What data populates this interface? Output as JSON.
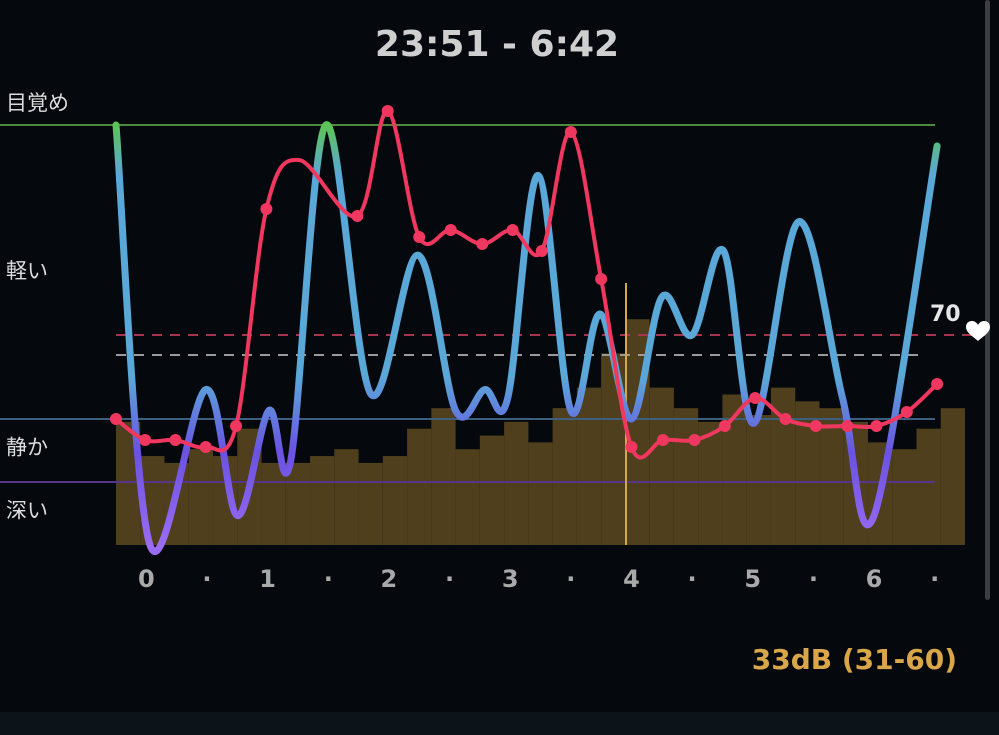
{
  "title": "23:51 - 6:42",
  "chart_data": {
    "type": "line",
    "xlim": [
      -0.25,
      6.75
    ],
    "xticks": [
      0,
      {
        "value": 0.5,
        "label": "·"
      },
      1,
      {
        "value": 1.5,
        "label": "·"
      },
      2,
      {
        "value": 2.5,
        "label": "·"
      },
      3,
      {
        "value": 3.5,
        "label": "·"
      },
      4,
      {
        "value": 4.5,
        "label": "·"
      },
      5,
      {
        "value": 5.5,
        "label": "·"
      },
      6,
      {
        "value": 6.5,
        "label": "·"
      }
    ],
    "ylim": [
      0,
      100
    ],
    "yticks": [
      {
        "value": 105,
        "label": "目覚め"
      },
      {
        "value": 65,
        "label": "軽い"
      },
      {
        "value": 23,
        "label": "静か"
      },
      {
        "value": 8,
        "label": "深い"
      }
    ],
    "stage_lines": [
      {
        "value": 100,
        "color": "#4c8a3e"
      },
      {
        "value": 30,
        "color": "#3c5f80"
      },
      {
        "value": 15,
        "color": "#56358a"
      }
    ],
    "y2lim": [
      40,
      100
    ],
    "y2ticks": [
      70
    ],
    "y2_line_color": "#a8334f",
    "sleep": {
      "x": [
        -0.25,
        0.03,
        0.49,
        0.75,
        1.01,
        1.19,
        1.48,
        1.85,
        2.24,
        2.55,
        2.79,
        2.98,
        3.23,
        3.5,
        3.74,
        4.0,
        4.25,
        4.5,
        4.76,
        5.01,
        5.38,
        5.74,
        6.0,
        6.52
      ],
      "values": [
        100,
        0,
        37,
        7,
        32,
        20,
        100,
        36,
        69,
        32,
        37,
        35,
        88,
        32,
        55,
        30,
        59,
        50,
        70,
        29,
        77,
        35,
        7,
        95
      ],
      "colors": [
        "#5cc456",
        "#5aa8d8",
        "#5aa8d8",
        "#6a52e2",
        "#9a6cf2"
      ]
    },
    "heart_rate": {
      "axis": "y2",
      "color": "#f0375f",
      "x": [
        -0.25,
        -0.01,
        0.24,
        0.49,
        0.74,
        0.99,
        1.26,
        1.74,
        1.99,
        2.25,
        2.51,
        2.77,
        3.02,
        3.26,
        3.5,
        3.75,
        4.0,
        4.26,
        4.52,
        4.77,
        5.02,
        5.27,
        5.52,
        5.78,
        6.02,
        6.27,
        6.52
      ],
      "values": [
        58,
        55,
        55,
        54,
        57,
        88,
        95,
        87,
        102,
        84,
        85,
        83,
        85,
        82,
        99,
        78,
        54,
        55,
        55,
        57,
        61,
        58,
        57,
        57,
        57,
        59,
        63
      ],
      "markers": [
        0,
        1,
        2,
        3,
        4,
        5,
        7,
        8,
        9,
        10,
        11,
        12,
        13,
        14,
        15,
        16,
        17,
        18,
        19,
        20,
        21,
        22,
        23,
        24,
        25,
        26
      ]
    },
    "sound": {
      "color": "#4f3f1c",
      "peak_color": "#7d6427",
      "soundlim": [
        22,
        60
      ],
      "bins": [
        -0.25,
        -0.05,
        0.15,
        0.35,
        0.55,
        0.75,
        0.95,
        1.15,
        1.35,
        1.55,
        1.75,
        1.95,
        2.15,
        2.35,
        2.55,
        2.75,
        2.95,
        3.15,
        3.35,
        3.55,
        3.75,
        3.95,
        4.15,
        4.35,
        4.55,
        4.75,
        4.95,
        5.15,
        5.35,
        5.55,
        5.75,
        5.95,
        6.15,
        6.35,
        6.55,
        6.75
      ],
      "values": [
        40,
        35,
        34,
        36,
        35,
        39,
        34,
        34,
        35,
        36,
        34,
        35,
        39,
        42,
        36,
        38,
        40,
        37,
        42,
        45,
        50,
        55,
        45,
        42,
        40,
        44,
        41,
        45,
        43,
        42,
        40,
        37,
        36,
        39,
        42
      ]
    },
    "sound_label": "33dB (31-60)"
  }
}
